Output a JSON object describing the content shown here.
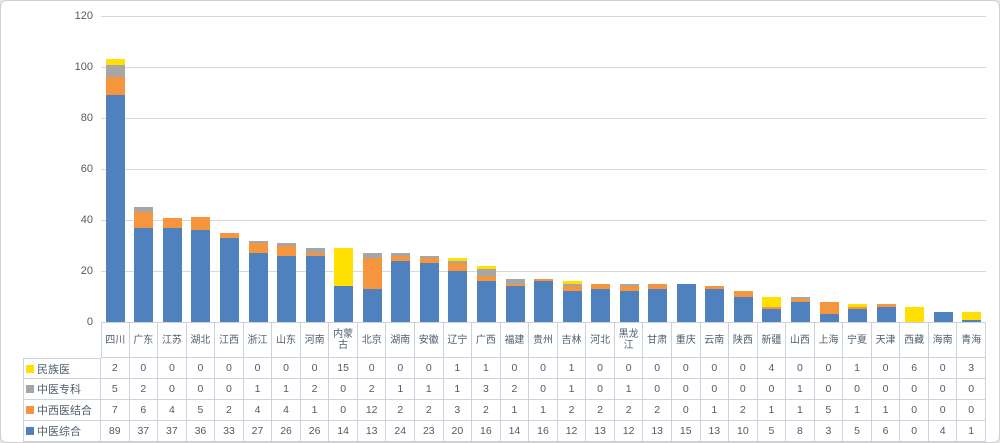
{
  "panel": {
    "background": "#ffffff",
    "border_color": "#cfcfd4"
  },
  "chart_data": {
    "type": "bar",
    "stacked": true,
    "title": "",
    "xlabel": "",
    "ylabel": "",
    "ylim": [
      0,
      120
    ],
    "yticks": [
      0,
      20,
      40,
      60,
      80,
      100,
      120
    ],
    "grid": "horizontal",
    "data_table_shown": true,
    "legend_position": "left-of-data-table",
    "stack_note": "series listed top-to-bottom in legend; last series (中医综合) is bottom of each stack",
    "categories": [
      "四川",
      "广东",
      "江苏",
      "湖北",
      "江西",
      "浙江",
      "山东",
      "河南",
      "内蒙古",
      "北京",
      "湖南",
      "安徽",
      "辽宁",
      "广西",
      "福建",
      "贵州",
      "吉林",
      "河北",
      "黑龙江",
      "甘肃",
      "重庆",
      "云南",
      "陕西",
      "新疆",
      "山西",
      "上海",
      "宁夏",
      "天津",
      "西藏",
      "海南",
      "青海"
    ],
    "series": [
      {
        "name": "民族医",
        "color": "#FFE000",
        "values": [
          2,
          0,
          0,
          0,
          0,
          0,
          0,
          0,
          15,
          0,
          0,
          0,
          1,
          1,
          0,
          0,
          1,
          0,
          0,
          0,
          0,
          0,
          0,
          4,
          0,
          0,
          1,
          0,
          6,
          0,
          3
        ]
      },
      {
        "name": "中医专科",
        "color": "#A6A6A6",
        "values": [
          5,
          2,
          0,
          0,
          0,
          1,
          1,
          2,
          0,
          2,
          1,
          1,
          1,
          3,
          2,
          0,
          1,
          0,
          1,
          0,
          0,
          0,
          0,
          0,
          1,
          0,
          0,
          0,
          0,
          0,
          0
        ]
      },
      {
        "name": "中西医结合",
        "color": "#F5953D",
        "values": [
          7,
          6,
          4,
          5,
          2,
          4,
          4,
          1,
          0,
          12,
          2,
          2,
          3,
          2,
          1,
          1,
          2,
          2,
          2,
          2,
          0,
          1,
          2,
          1,
          1,
          5,
          1,
          1,
          0,
          0,
          0
        ]
      },
      {
        "name": "中医综合",
        "color": "#4E81BD",
        "values": [
          89,
          37,
          37,
          36,
          33,
          27,
          26,
          26,
          14,
          13,
          24,
          23,
          20,
          16,
          14,
          16,
          12,
          13,
          12,
          13,
          15,
          13,
          10,
          5,
          8,
          3,
          5,
          6,
          0,
          4,
          1
        ]
      }
    ]
  }
}
